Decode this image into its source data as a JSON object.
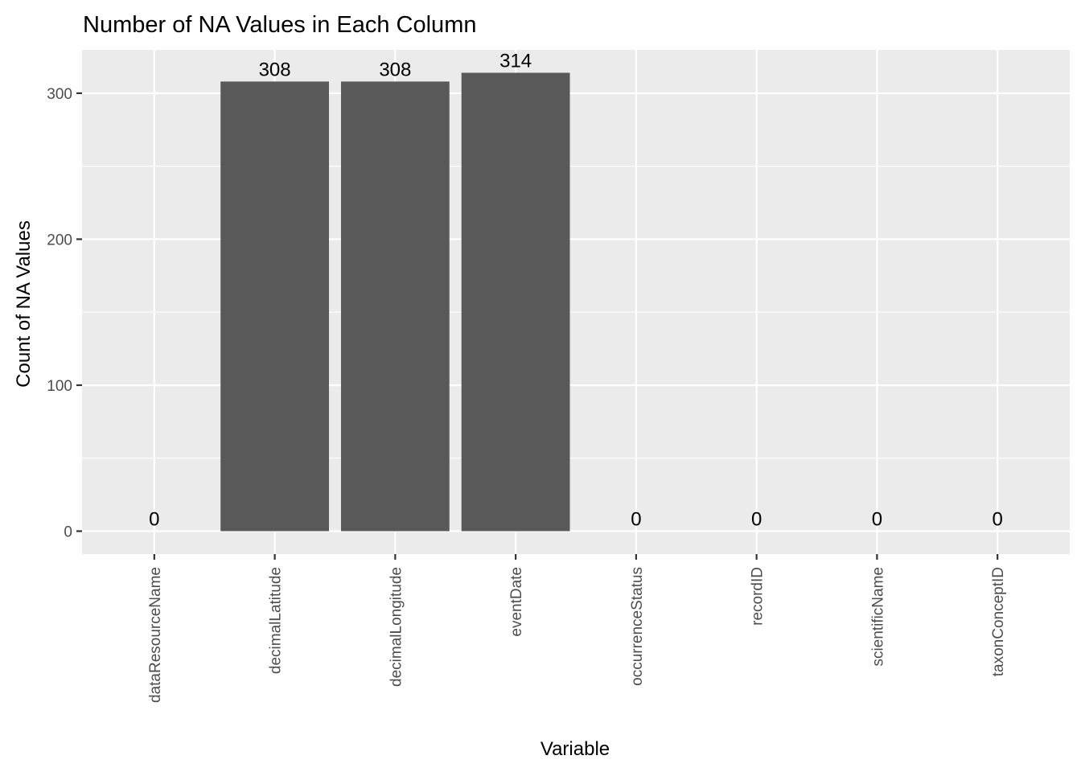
{
  "chart_data": {
    "type": "bar",
    "title": "Number of NA Values in Each Column",
    "xlabel": "Variable",
    "ylabel": "Count of NA Values",
    "categories": [
      "dataResourceName",
      "decimalLatitude",
      "decimalLongitude",
      "eventDate",
      "occurrenceStatus",
      "recordID",
      "scientificName",
      "taxonConceptID"
    ],
    "values": [
      0,
      308,
      308,
      314,
      0,
      0,
      0,
      0
    ],
    "data_labels": [
      "0",
      "308",
      "308",
      "314",
      "0",
      "0",
      "0",
      "0"
    ],
    "yticks": [
      0,
      100,
      200,
      300
    ],
    "ytick_labels": [
      "0",
      "100",
      "200",
      "300"
    ],
    "ylim": [
      -15.7,
      329.7
    ],
    "grid": true,
    "colors": {
      "bar": "#595959",
      "panel": "#ebebeb",
      "grid": "#ffffff"
    }
  }
}
